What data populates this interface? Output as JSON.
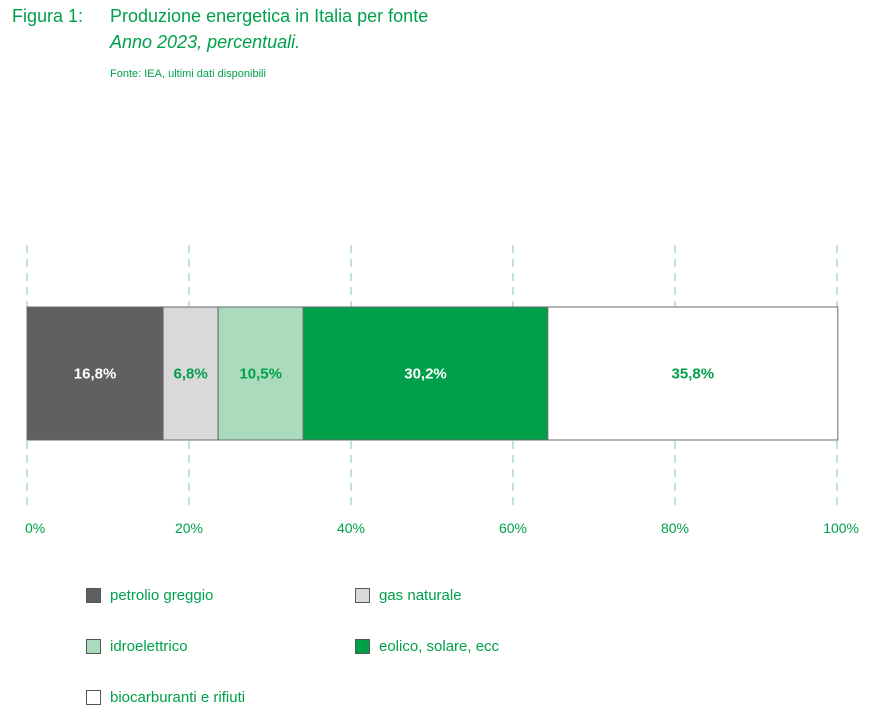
{
  "header": {
    "figure_label": "Figura 1:",
    "title": "Produzione energetica in Italia per fonte",
    "subtitle": "Anno 2023, percentuali.",
    "source": "Fonte: IEA, ultimi dati disponibili"
  },
  "colors": {
    "accent": "#00a04b",
    "grid": "#7fc9a0"
  },
  "chart_data": {
    "type": "bar",
    "orientation": "horizontal-stacked",
    "title": "Produzione energetica in Italia per fonte",
    "xlim": [
      0,
      100
    ],
    "ticks": [
      0,
      20,
      40,
      60,
      80,
      100
    ],
    "tick_labels": [
      "0%",
      "20%",
      "40%",
      "60%",
      "80%",
      "100%"
    ],
    "grid": "vertical-dashed",
    "series": [
      {
        "name": "petrolio greggio",
        "value": 16.8,
        "label": "16,8%",
        "color": "#5f6062",
        "label_color": "#ffffff"
      },
      {
        "name": "gas naturale",
        "value": 6.8,
        "label": "6,8%",
        "color": "#d9d9d9",
        "label_color": "#00a04b"
      },
      {
        "name": "idroelettrico",
        "value": 10.5,
        "label": "10,5%",
        "color": "#a9dbbc",
        "label_color": "#00a04b"
      },
      {
        "name": "eolico, solare, ecc",
        "value": 30.2,
        "label": "30,2%",
        "color": "#00a04b",
        "label_color": "#ffffff"
      },
      {
        "name": "biocarburanti e rifiuti",
        "value": 35.8,
        "label": "35,8%",
        "color": "#ffffff",
        "label_color": "#00a04b"
      }
    ],
    "legend_placement": "bottom"
  }
}
